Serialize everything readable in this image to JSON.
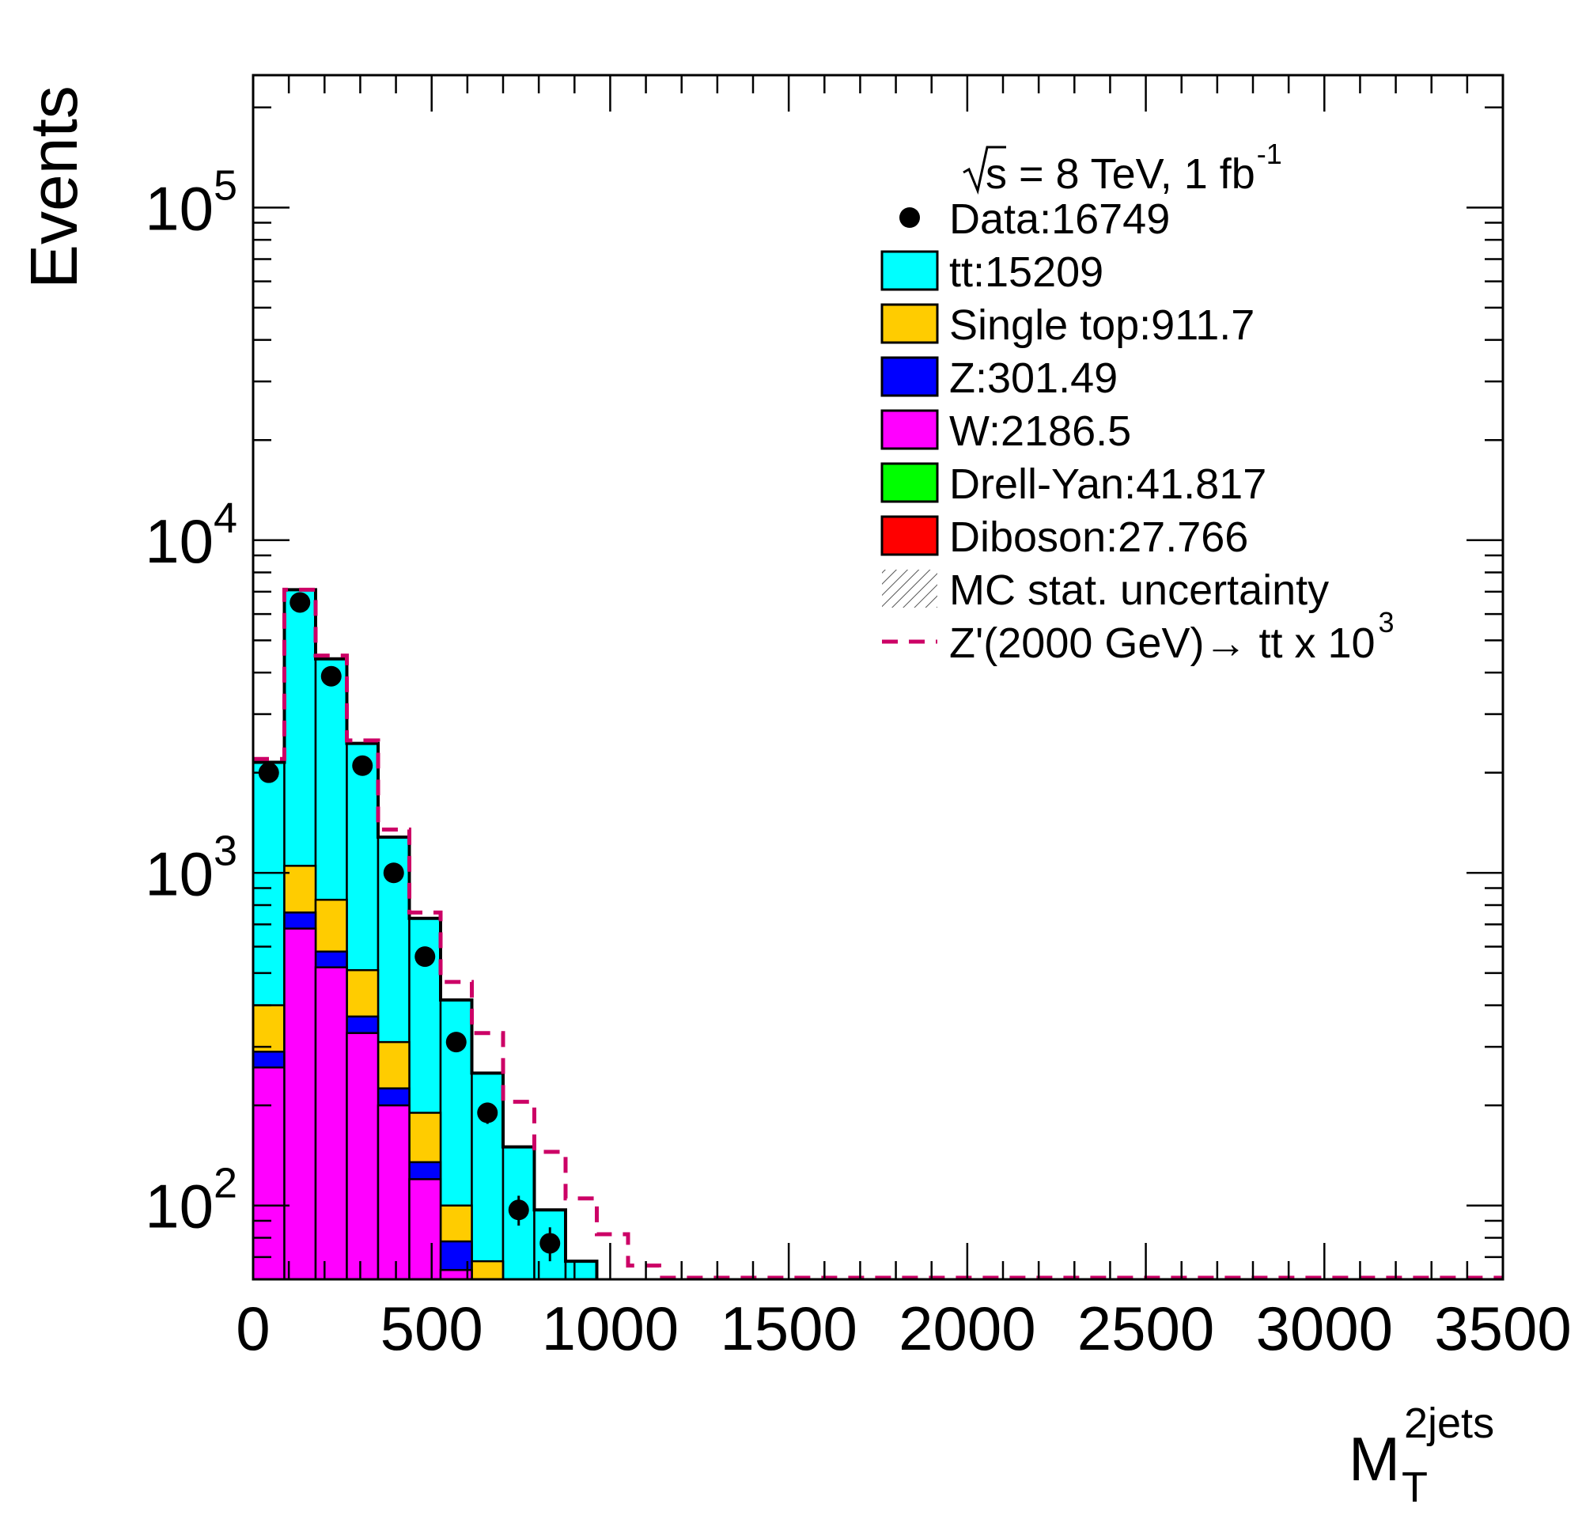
{
  "chart_data": {
    "type": "bar",
    "stacked": true,
    "y_scale": "log",
    "xlabel_main": "M",
    "xlabel_sub": "T",
    "xlabel_sup": "2jets",
    "ylabel": "Events",
    "xlim": [
      0,
      3500
    ],
    "ylim": [
      60,
      250000
    ],
    "bin_width": 87.5,
    "x_ticks": [
      "0",
      "500",
      "1000",
      "1500",
      "2000",
      "2500",
      "3000",
      "3500"
    ],
    "y_ticks": [
      {
        "value": 100,
        "base": "10",
        "exp": "2"
      },
      {
        "value": 1000,
        "base": "10",
        "exp": "3"
      },
      {
        "value": 10000,
        "base": "10",
        "exp": "4"
      },
      {
        "value": 100000,
        "base": "10",
        "exp": "5"
      }
    ],
    "annotation": {
      "energy": "s = 8 TeV, 1 fb",
      "energy_sup": "-1"
    },
    "legend": {
      "placement": "top-right",
      "entries": [
        {
          "key": "data",
          "label": "Data:16749",
          "style": "marker",
          "color": "#000000"
        },
        {
          "key": "ttbar",
          "label": "tt:15209",
          "style": "fill",
          "color": "#00ffff"
        },
        {
          "key": "single_top",
          "label": "Single top:911.7",
          "style": "fill",
          "color": "#ffcc00"
        },
        {
          "key": "z",
          "label": "Z:301.49",
          "style": "fill",
          "color": "#0000ff"
        },
        {
          "key": "w",
          "label": "W:2186.5",
          "style": "fill",
          "color": "#ff00ff"
        },
        {
          "key": "dy",
          "label": "Drell-Yan:41.817",
          "style": "fill",
          "color": "#00ff00"
        },
        {
          "key": "diboson",
          "label": "Diboson:27.766",
          "style": "fill",
          "color": "#ff0000"
        },
        {
          "key": "mc_unc",
          "label": "MC stat. uncertainty",
          "style": "hatch",
          "color": "#555555"
        },
        {
          "key": "zprime",
          "label": "Z'(2000 GeV)→ tt x 10",
          "label_sup": "3",
          "style": "dashed",
          "color": "#cc0066"
        }
      ]
    },
    "stack_order": [
      "w",
      "z",
      "single_top",
      "ttbar"
    ],
    "stack_colors": {
      "w": "#ff00ff",
      "z": "#0000ff",
      "single_top": "#ffcc00",
      "ttbar": "#00ffff"
    },
    "cumulative_edges": [
      0,
      87.5,
      175,
      262.5,
      350,
      437.5,
      525,
      612.5,
      700,
      787.5,
      875,
      962.5
    ],
    "cumulative": {
      "w": [
        260,
        680,
        520,
        330,
        200,
        120,
        64,
        0,
        0,
        0,
        0
      ],
      "z": [
        290,
        760,
        580,
        370,
        225,
        135,
        78,
        0,
        0,
        0,
        0
      ],
      "single_top": [
        400,
        1050,
        830,
        510,
        310,
        190,
        100,
        68,
        0,
        0,
        0
      ],
      "ttbar": [
        2150,
        7100,
        4400,
        2450,
        1280,
        730,
        415,
        250,
        150,
        97,
        68
      ]
    },
    "data_points": [
      {
        "x": 43.75,
        "y": 2000,
        "err": 45
      },
      {
        "x": 131.25,
        "y": 6500,
        "err": 80
      },
      {
        "x": 218.75,
        "y": 3900,
        "err": 62
      },
      {
        "x": 306.25,
        "y": 2100,
        "err": 46
      },
      {
        "x": 393.75,
        "y": 1000,
        "err": 32
      },
      {
        "x": 481.25,
        "y": 560,
        "err": 24
      },
      {
        "x": 568.75,
        "y": 310,
        "err": 18
      },
      {
        "x": 656.25,
        "y": 190,
        "err": 14
      },
      {
        "x": 743.75,
        "y": 97,
        "err": 10
      },
      {
        "x": 831.25,
        "y": 77,
        "err": 9
      }
    ],
    "zprime": {
      "edges": [
        0,
        87.5,
        175,
        262.5,
        350,
        437.5,
        525,
        612.5,
        700,
        787.5,
        875,
        962.5,
        1050,
        1137.5,
        3500
      ],
      "values": [
        2200,
        7100,
        4500,
        2500,
        1350,
        760,
        470,
        330,
        205,
        145,
        105,
        82,
        66,
        60
      ]
    }
  }
}
